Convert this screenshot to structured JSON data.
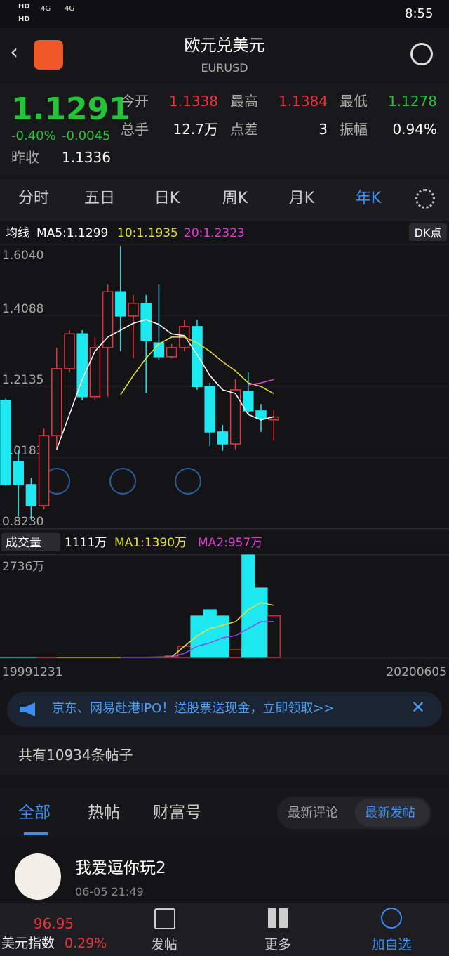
{
  "status": {
    "time": "8:55",
    "network": [
      "HD",
      "4G",
      "HD",
      "4G"
    ]
  },
  "header": {
    "title": "欧元兑美元",
    "subtitle": "EURUSD"
  },
  "quote": {
    "price": "1.1291",
    "change_pct": "-0.40%",
    "change": "-0.0045",
    "prev_close_label": "昨收",
    "prev_close": "1.1336",
    "stats": [
      {
        "label": "今开",
        "value": "1.1338"
      },
      {
        "label": "最高",
        "value": "1.1384"
      },
      {
        "label": "最低",
        "value": "1.1278"
      },
      {
        "label": "总手",
        "value": "12.7万"
      },
      {
        "label": "点差",
        "value": "3"
      },
      {
        "label": "振幅",
        "value": "0.94%"
      }
    ]
  },
  "tabs": {
    "items": [
      "分时",
      "五日",
      "日K",
      "周K",
      "月K",
      "年K"
    ],
    "active": 5
  },
  "ma_legend": {
    "label": "均线",
    "ma5": "MA5:1.1299",
    "ma10": "10:1.1935",
    "ma20": "20:1.2323",
    "dk": "DK点"
  },
  "kline": {
    "up_color": "#e8353f",
    "down_color": "#1ee8f0",
    "ma5_color": "#ffffff",
    "ma10_color": "#e6e03a",
    "ma20_color": "#e23bd8",
    "ylim": [
      0.823,
      1.604
    ],
    "yticks": [
      {
        "value": 1.604,
        "label": "1.6040"
      },
      1.4088,
      1.2135,
      1.0183,
      {
        "value": 0.823,
        "label": "0.8230"
      }
    ],
    "open": [
      1.175,
      1.007,
      0.943,
      0.885,
      1.078,
      1.262,
      1.358,
      1.185,
      1.32,
      1.474,
      1.407,
      1.442,
      1.333,
      1.295,
      1.32,
      1.378,
      1.213,
      1.088,
      1.055,
      1.2,
      1.146,
      1.1213
    ],
    "high": [
      1.18,
      1.04,
      0.962,
      1.097,
      1.32,
      1.368,
      1.368,
      1.349,
      1.494,
      1.6,
      1.465,
      1.465,
      1.494,
      1.33,
      1.397,
      1.397,
      1.223,
      1.107,
      1.233,
      1.252,
      1.165,
      1.1495
    ],
    "low": [
      0.94,
      0.856,
      0.846,
      0.875,
      1.04,
      1.252,
      1.175,
      1.175,
      1.185,
      1.31,
      1.291,
      1.194,
      1.287,
      1.291,
      1.31,
      1.204,
      1.049,
      1.036,
      1.04,
      1.136,
      1.088,
      1.0636
    ],
    "close": [
      0.943,
      0.943,
      0.885,
      1.078,
      1.262,
      1.358,
      1.185,
      1.32,
      1.474,
      1.407,
      1.442,
      1.339,
      1.295,
      1.32,
      1.378,
      1.213,
      1.088,
      1.055,
      1.204,
      1.146,
      1.125,
      1.1291
    ],
    "ma5": [
      null,
      null,
      null,
      null,
      1.04,
      1.136,
      1.233,
      1.31,
      1.349,
      1.368,
      1.387,
      1.397,
      1.384,
      1.358,
      1.353,
      1.301,
      1.243,
      1.204,
      1.194,
      1.136,
      1.121,
      1.1299
    ],
    "ma10": [
      null,
      null,
      null,
      null,
      null,
      null,
      null,
      null,
      null,
      1.19,
      1.243,
      1.291,
      1.33,
      1.349,
      1.349,
      1.333,
      1.31,
      1.281,
      1.256,
      1.223,
      1.213,
      1.1935
    ],
    "ma20": [
      null,
      null,
      null,
      null,
      null,
      null,
      null,
      null,
      null,
      null,
      null,
      null,
      null,
      null,
      null,
      null,
      null,
      null,
      null,
      1.217,
      1.223,
      1.2323
    ]
  },
  "volume": {
    "label": "成交量",
    "current": "1111万",
    "ma1_label": "MA1:1390万",
    "ma2_label": "MA2:957万",
    "ma1_color": "#e6e03a",
    "ma2_color": "#8a4cf0",
    "ylim": [
      0,
      2736
    ],
    "yticks": [
      {
        "value": 2736,
        "label": "2736万"
      }
    ],
    "values": [
      0,
      0,
      0,
      5,
      5,
      5,
      5,
      5,
      5,
      5,
      5,
      5,
      5,
      40,
      300,
      1106,
      1274,
      1106,
      206,
      2736,
      1855,
      1111
    ],
    "ma1": [
      null,
      null,
      null,
      null,
      5,
      5,
      5,
      5,
      5,
      5,
      5,
      5,
      10,
      15,
      300,
      580,
      770,
      860,
      955,
      1274,
      1462,
      1390
    ],
    "ma2": [
      null,
      null,
      null,
      null,
      null,
      null,
      null,
      null,
      null,
      5,
      5,
      5,
      5,
      10,
      110,
      300,
      390,
      525,
      580,
      770,
      955,
      957
    ],
    "start_date": "19991231",
    "end_date": "20200605"
  },
  "banner": {
    "text": "京东、网易赴港IPO！送股票送现金，立即领取>>"
  },
  "posts": {
    "count": "共有10934条帖子",
    "tabs": [
      "全部",
      "热帖",
      "财富号"
    ],
    "sort": [
      "最新评论",
      "最新发帖"
    ],
    "user": "我爱逗你玩2",
    "time": "06-05 21:49"
  },
  "nav": {
    "index_price": "96.95",
    "index_name": "美元指数",
    "index_change": "0.29%",
    "items": [
      "发帖",
      "更多",
      "加自选"
    ]
  }
}
